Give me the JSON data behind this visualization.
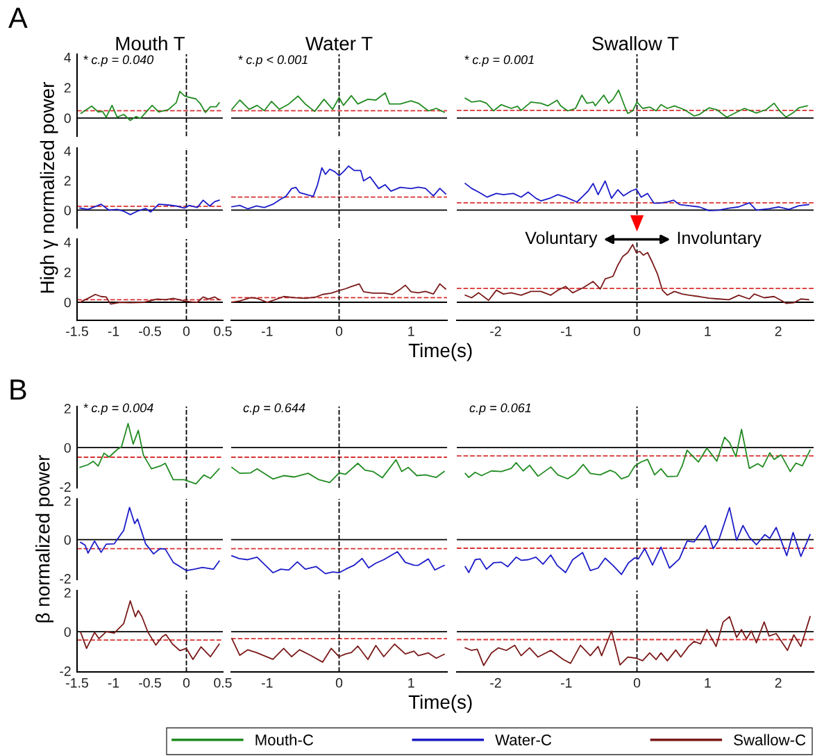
{
  "chart_data": [
    {
      "type": "line",
      "title": "Mouth T",
      "annotations": [
        "A",
        "* c.p = 0.040"
      ],
      "xlim": [
        -1.5,
        0.5
      ],
      "ylim": [
        -1.2,
        4.2
      ],
      "yticks": [
        0,
        2,
        4
      ],
      "tick_labels": "y",
      "series": [
        {
          "color": "#228b22",
          "x": [
            -1.445,
            -1.3,
            -1.21,
            -1.15,
            -1.1,
            -1.02,
            -0.95,
            -0.86,
            -0.77,
            -0.69,
            -0.63,
            -0.47,
            -0.38,
            -0.25,
            -0.14,
            -0.09,
            -0.03,
            0.0,
            0.13,
            0.19,
            0.26,
            0.33,
            0.41,
            0.45
          ],
          "values": [
            0.31,
            0.78,
            0.4,
            0.43,
            0.05,
            0.83,
            0.05,
            0.23,
            -0.16,
            0.09,
            -0.03,
            0.83,
            0.4,
            0.54,
            1.0,
            1.75,
            1.47,
            1.4,
            1.26,
            0.95,
            0.36,
            0.74,
            0.74,
            1.0
          ]
        }
      ],
      "ref_lines": [
        {
          "axis": "y",
          "value": 0,
          "color": "#000000",
          "line_style": "solid"
        },
        {
          "axis": "y",
          "value": 0.48,
          "color": "#d93030",
          "line_style": "dashed"
        },
        {
          "axis": "x",
          "value": 0,
          "color": "#000000",
          "line_style": "dashed"
        }
      ]
    },
    {
      "type": "line",
      "title": "Water T",
      "annotations": [
        "* c.p < 0.001"
      ],
      "xlim": [
        -1.5,
        1.5
      ],
      "ylim": [
        -1.2,
        4.2
      ],
      "tick_labels": false,
      "series": [
        {
          "color": "#228b22",
          "x": [
            -1.49,
            -1.38,
            -1.25,
            -1.14,
            -1.04,
            -0.94,
            -0.83,
            -0.7,
            -0.57,
            -0.47,
            -0.34,
            -0.21,
            -0.09,
            0,
            0.06,
            0.17,
            0.26,
            0.4,
            0.51,
            0.64,
            0.7,
            0.85,
            1.0,
            1.1,
            1.24,
            1.35,
            1.46
          ],
          "values": [
            0.57,
            1.18,
            0.57,
            0.83,
            0.48,
            1.09,
            0.57,
            0.92,
            1.44,
            0.92,
            0.43,
            1.23,
            0.57,
            1.35,
            0.83,
            1.47,
            0.92,
            1.23,
            1.18,
            1.65,
            0.92,
            0.92,
            1.13,
            0.97,
            0.47,
            0.63,
            0.38
          ]
        }
      ],
      "ref_lines": [
        {
          "axis": "y",
          "value": 0,
          "color": "#000000",
          "line_style": "solid"
        },
        {
          "axis": "y",
          "value": 0.48,
          "color": "#d93030",
          "line_style": "dashed"
        },
        {
          "axis": "x",
          "value": 0,
          "color": "#000000",
          "line_style": "dashed"
        }
      ]
    },
    {
      "type": "line",
      "title": "Swallow T",
      "annotations": [
        "* c.p = 0.001"
      ],
      "xlim": [
        -2.55,
        2.5
      ],
      "ylim": [
        -1.2,
        4.2
      ],
      "tick_labels": false,
      "series": [
        {
          "color": "#228b22",
          "x": [
            -2.43,
            -2.34,
            -2.22,
            -2.13,
            -2.03,
            -1.92,
            -1.78,
            -1.69,
            -1.64,
            -1.5,
            -1.36,
            -1.26,
            -1.13,
            -1.08,
            -0.98,
            -0.87,
            -0.78,
            -0.71,
            -0.62,
            -0.59,
            -0.47,
            -0.4,
            -0.34,
            -0.26,
            -0.17,
            -0.13,
            -0.06,
            0,
            0.08,
            0.18,
            0.27,
            0.34,
            0.43,
            0.53,
            0.67,
            0.81,
            0.88,
            1.02,
            1.13,
            1.27,
            1.41,
            1.52,
            1.69,
            1.83,
            1.94,
            2.02,
            2.11,
            2.22,
            2.29,
            2.41
          ],
          "values": [
            1.3,
            1.05,
            1.13,
            0.97,
            0.47,
            0.88,
            0.63,
            0.77,
            0.5,
            1.05,
            0.97,
            0.8,
            1.17,
            0.8,
            0.47,
            0.63,
            1.5,
            0.97,
            1.05,
            0.8,
            1.5,
            0.97,
            1.22,
            1.83,
            0.72,
            0.3,
            0.47,
            1.05,
            0.63,
            0.72,
            0.47,
            0.88,
            0.63,
            0.8,
            0.55,
            0.13,
            0.22,
            0.67,
            0.55,
            0.05,
            0.38,
            0.63,
            0.33,
            0.55,
            0.97,
            0.47,
            0.05,
            0.38,
            0.67,
            0.8
          ]
        }
      ],
      "ref_lines": [
        {
          "axis": "y",
          "value": 0,
          "color": "#000000",
          "line_style": "solid"
        },
        {
          "axis": "y",
          "value": 0.5,
          "color": "#d93030",
          "line_style": "dashed"
        },
        {
          "axis": "x",
          "value": 0,
          "color": "#000000",
          "line_style": "dashed"
        }
      ]
    },
    {
      "type": "line",
      "ylabel": "High γ normalized power",
      "xlim": [
        -1.5,
        0.5
      ],
      "ylim": [
        -1.2,
        4.2
      ],
      "yticks": [
        0,
        2,
        4
      ],
      "tick_labels": "y",
      "series": [
        {
          "color": "#1c1cc8",
          "x": [
            -1.46,
            -1.35,
            -1.17,
            -1.06,
            -0.95,
            -0.86,
            -0.77,
            -0.66,
            -0.56,
            -0.49,
            -0.38,
            -0.25,
            -0.14,
            -0.03,
            0.04,
            0.15,
            0.23,
            0.32,
            0.39,
            0.45
          ],
          "values": [
            0.14,
            0.05,
            0.4,
            0,
            0.05,
            -0.07,
            -0.3,
            -0.04,
            0.11,
            -0.12,
            0.4,
            0.35,
            0.28,
            0.14,
            0.32,
            0.18,
            0.67,
            0.28,
            0.58,
            0.67
          ]
        }
      ],
      "ref_lines": [
        {
          "axis": "y",
          "value": 0,
          "color": "#000000",
          "line_style": "solid"
        },
        {
          "axis": "y",
          "value": 0.26,
          "color": "#d93030",
          "line_style": "dashed"
        },
        {
          "axis": "x",
          "value": 0,
          "color": "#000000",
          "line_style": "dashed"
        }
      ]
    },
    {
      "type": "line",
      "xlim": [
        -1.5,
        1.5
      ],
      "ylim": [
        -1.2,
        4.2
      ],
      "tick_labels": false,
      "series": [
        {
          "color": "#1c1cc8",
          "x": [
            -1.49,
            -1.38,
            -1.27,
            -1.15,
            -1.04,
            -0.92,
            -0.81,
            -0.74,
            -0.66,
            -0.6,
            -0.55,
            -0.43,
            -0.36,
            -0.3,
            -0.24,
            -0.19,
            -0.13,
            -0.06,
            0,
            0.06,
            0.13,
            0.21,
            0.3,
            0.34,
            0.43,
            0.55,
            0.64,
            0.72,
            0.85,
            1.0,
            1.1,
            1.2,
            1.31,
            1.4,
            1.48
          ],
          "values": [
            0.23,
            0.32,
            0.09,
            0.28,
            0.18,
            0.4,
            0.75,
            0.93,
            1.46,
            1.54,
            1.19,
            1.02,
            0.93,
            1.72,
            2.86,
            2.42,
            2.77,
            2.6,
            2.33,
            2.6,
            2.98,
            2.68,
            2.68,
            1.98,
            2.25,
            1.46,
            1.72,
            1.28,
            1.54,
            1.46,
            1.55,
            1.47,
            0.97,
            1.47,
            1.1
          ]
        }
      ],
      "ref_lines": [
        {
          "axis": "y",
          "value": 0,
          "color": "#000000",
          "line_style": "solid"
        },
        {
          "axis": "y",
          "value": 0.88,
          "color": "#d93030",
          "line_style": "dashed"
        },
        {
          "axis": "x",
          "value": 0,
          "color": "#000000",
          "line_style": "dashed"
        }
      ]
    },
    {
      "type": "line",
      "xlim": [
        -2.55,
        2.5
      ],
      "ylim": [
        -1.2,
        4.2
      ],
      "tick_labels": false,
      "series": [
        {
          "color": "#1c1cc8",
          "x": [
            -2.43,
            -2.34,
            -2.24,
            -2.12,
            -1.99,
            -1.89,
            -1.75,
            -1.64,
            -1.54,
            -1.43,
            -1.36,
            -1.22,
            -1.12,
            -1.01,
            -0.85,
            -0.76,
            -0.69,
            -0.62,
            -0.55,
            -0.45,
            -0.36,
            -0.27,
            -0.19,
            -0.08,
            -0.01,
            0.06,
            0.15,
            0.24,
            0.32,
            0.43,
            0.52,
            0.6,
            0.74,
            0.88,
            1.02,
            1.16,
            1.3,
            1.44,
            1.59,
            1.69,
            1.87,
            2.01,
            2.15,
            2.29,
            2.43
          ],
          "values": [
            1.8,
            1.47,
            1.22,
            0.88,
            1.13,
            1.05,
            1.13,
            0.88,
            1.22,
            0.8,
            0.63,
            0.83,
            1.05,
            0.88,
            0.55,
            0.97,
            1.3,
            1.8,
            1.05,
            1.97,
            0.8,
            1.38,
            0.97,
            1.3,
            1.43,
            0.88,
            1.13,
            0.47,
            0.47,
            0.55,
            0.67,
            0.38,
            0.3,
            0.22,
            -0.03,
            0,
            0.13,
            0.22,
            0.5,
            0,
            0.1,
            0.22,
            0.05,
            0.3,
            0.38
          ]
        }
      ],
      "ref_lines": [
        {
          "axis": "y",
          "value": 0,
          "color": "#000000",
          "line_style": "solid"
        },
        {
          "axis": "y",
          "value": 0.5,
          "color": "#d93030",
          "line_style": "dashed"
        },
        {
          "axis": "x",
          "value": 0,
          "color": "#000000",
          "line_style": "dashed"
        }
      ]
    },
    {
      "type": "line",
      "xlim": [
        -1.5,
        0.5
      ],
      "xticks": [
        -1.5,
        -1,
        -0.5,
        0,
        0.5
      ],
      "ylim": [
        -1.2,
        4.2
      ],
      "yticks": [
        0,
        2,
        4
      ],
      "series": [
        {
          "color": "#7a1a1a",
          "x": [
            -1.46,
            -1.35,
            -1.25,
            -1.17,
            -1.1,
            -1.04,
            -0.91,
            -0.77,
            -0.58,
            -0.4,
            -0.29,
            -0.18,
            -0.03,
            0.07,
            0.15,
            0.23,
            0.3,
            0.39,
            0.45
          ],
          "values": [
            0,
            0.26,
            0.52,
            0.38,
            0.35,
            -0.12,
            0,
            -0.03,
            0,
            0.21,
            0.17,
            0.26,
            0.09,
            0.03,
            0,
            0.35,
            0.21,
            0.35,
            0.17
          ]
        }
      ],
      "ref_lines": [
        {
          "axis": "y",
          "value": 0,
          "color": "#000000",
          "line_style": "solid"
        },
        {
          "axis": "y",
          "value": 0.17,
          "color": "#d93030",
          "line_style": "dashed"
        },
        {
          "axis": "x",
          "value": 0,
          "color": "#000000",
          "line_style": "dashed"
        }
      ]
    },
    {
      "type": "line",
      "xlabel": "Time(s)",
      "xlim": [
        -1.5,
        1.5
      ],
      "xticks": [
        -1,
        0,
        1
      ],
      "ylim": [
        -1.2,
        4.2
      ],
      "tick_labels": "x",
      "series": [
        {
          "color": "#7a1a1a",
          "x": [
            -1.49,
            -1.38,
            -1.23,
            -1.14,
            -1.0,
            -0.89,
            -0.77,
            -0.62,
            -0.47,
            -0.32,
            -0.23,
            -0.11,
            0,
            0.09,
            0.17,
            0.28,
            0.34,
            0.47,
            0.62,
            0.74,
            0.85,
            0.92,
            1.0,
            1.1,
            1.2,
            1.31,
            1.4,
            1.48
          ],
          "values": [
            0,
            0.09,
            0.31,
            0.26,
            0,
            0.17,
            0.38,
            0.31,
            0.26,
            0.35,
            0.52,
            0.61,
            0.78,
            0.9,
            1.04,
            1.22,
            0.7,
            0.61,
            0.61,
            0.52,
            0.87,
            1.13,
            0.7,
            0.63,
            0.72,
            0.55,
            1.22,
            0.88
          ]
        }
      ],
      "ref_lines": [
        {
          "axis": "y",
          "value": 0,
          "color": "#000000",
          "line_style": "solid"
        },
        {
          "axis": "y",
          "value": 0.31,
          "color": "#d93030",
          "line_style": "dashed"
        },
        {
          "axis": "x",
          "value": 0,
          "color": "#000000",
          "line_style": "dashed"
        }
      ]
    },
    {
      "type": "line",
      "annotations": [
        "Voluntary",
        "Involuntary"
      ],
      "xlim": [
        -2.55,
        2.5
      ],
      "xticks": [
        -2,
        -1,
        0,
        1,
        2
      ],
      "ylim": [
        -1.2,
        4.2
      ],
      "tick_labels": "x",
      "series": [
        {
          "color": "#7a1a1a",
          "x": [
            -2.43,
            -2.34,
            -2.24,
            -2.1,
            -1.99,
            -1.89,
            -1.78,
            -1.64,
            -1.5,
            -1.36,
            -1.22,
            -1.12,
            -1.01,
            -0.91,
            -0.76,
            -0.62,
            -0.52,
            -0.45,
            -0.34,
            -0.27,
            -0.2,
            -0.13,
            -0.06,
            -0.01,
            0.04,
            0.09,
            0.15,
            0.22,
            0.29,
            0.36,
            0.43,
            0.53,
            0.64,
            0.74,
            0.88,
            1.02,
            1.16,
            1.3,
            1.44,
            1.59,
            1.66,
            1.8,
            1.94,
            2.04,
            2.11,
            2.22,
            2.32,
            2.43
          ],
          "values": [
            0.47,
            0.3,
            0.63,
            0.13,
            0.8,
            0.55,
            0.63,
            0.47,
            0.72,
            0.72,
            0.47,
            0.8,
            1.05,
            0.63,
            0.97,
            1.38,
            0.88,
            1.55,
            1.72,
            2.47,
            3.05,
            3.3,
            3.83,
            3.3,
            3.38,
            3.13,
            3.3,
            2.63,
            1.88,
            0.8,
            0.47,
            0.72,
            0.55,
            0.47,
            0.38,
            0.27,
            0.22,
            0.17,
            0.47,
            0.22,
            0.55,
            0.3,
            0.38,
            0.13,
            -0.07,
            -0.03,
            0.22,
            0.17
          ]
        }
      ],
      "ref_lines": [
        {
          "axis": "y",
          "value": 0,
          "color": "#000000",
          "line_style": "solid"
        },
        {
          "axis": "y",
          "value": 0.92,
          "color": "#d93030",
          "line_style": "dashed"
        },
        {
          "axis": "x",
          "value": 0,
          "color": "#000000",
          "line_style": "dashed"
        }
      ]
    },
    {
      "type": "line",
      "annotations": [
        "B",
        "* c.p = 0.004"
      ],
      "xlim": [
        -1.5,
        0.5
      ],
      "ylim": [
        -2.05,
        2.1
      ],
      "yticks": [
        -2,
        0,
        2
      ],
      "tick_labels": "y",
      "legend": "bottom",
      "series": [
        {
          "name": "Mouth-C",
          "color": "#228b22",
          "x": [
            -1.46,
            -1.35,
            -1.28,
            -1.21,
            -1.13,
            -1.06,
            -0.95,
            -0.89,
            -0.8,
            -0.73,
            -0.66,
            -0.59,
            -0.48,
            -0.36,
            -0.29,
            -0.18,
            -0.03,
            0.13,
            0.24,
            0.33,
            0.45
          ],
          "values": [
            -1.01,
            -0.87,
            -0.7,
            -0.94,
            -0.28,
            -0.48,
            -0.1,
            0.04,
            1.23,
            0.18,
            0.88,
            -0.38,
            -1.08,
            -0.94,
            -0.8,
            -1.64,
            -1.64,
            -1.85,
            -1.4,
            -1.57,
            -1.08
          ]
        }
      ],
      "ref_lines": [
        {
          "axis": "y",
          "value": 0,
          "color": "#000000",
          "line_style": "solid"
        },
        {
          "axis": "y",
          "value": -0.49,
          "color": "#d93030",
          "line_style": "dashed"
        },
        {
          "axis": "x",
          "value": 0,
          "color": "#000000",
          "line_style": "dashed"
        }
      ]
    },
    {
      "type": "line",
      "annotations": [
        "c.p = 0.644"
      ],
      "xlim": [
        -1.5,
        1.5
      ],
      "ylim": [
        -2.05,
        2.1
      ],
      "tick_labels": false,
      "series": [
        {
          "color": "#228b22",
          "x": [
            -1.49,
            -1.38,
            -1.23,
            -1.14,
            -0.92,
            -0.77,
            -0.62,
            -0.43,
            -0.28,
            -0.13,
            0,
            0.09,
            0.26,
            0.36,
            0.47,
            0.6,
            0.79,
            0.87,
            0.96,
            1.08,
            1.2,
            1.35,
            1.46
          ],
          "values": [
            -1.01,
            -1.31,
            -1.29,
            -1.08,
            -1.6,
            -1.43,
            -1.5,
            -1.31,
            -1.64,
            -1.78,
            -1.29,
            -1.36,
            -0.8,
            -1.15,
            -1.22,
            -1.54,
            -0.62,
            -1.22,
            -1.01,
            -1.43,
            -1.39,
            -1.52,
            -1.22
          ]
        }
      ],
      "ref_lines": [
        {
          "axis": "y",
          "value": 0,
          "color": "#000000",
          "line_style": "solid"
        },
        {
          "axis": "y",
          "value": -0.49,
          "color": "#d93030",
          "line_style": "dashed"
        },
        {
          "axis": "x",
          "value": 0,
          "color": "#000000",
          "line_style": "dashed"
        }
      ]
    },
    {
      "type": "line",
      "annotations": [
        "c.p = 0.061"
      ],
      "xlim": [
        -2.55,
        2.5
      ],
      "ylim": [
        -2.05,
        2.1
      ],
      "tick_labels": false,
      "series": [
        {
          "color": "#228b22",
          "x": [
            -2.43,
            -2.38,
            -2.29,
            -2.2,
            -2.06,
            -1.92,
            -1.78,
            -1.71,
            -1.61,
            -1.52,
            -1.4,
            -1.22,
            -1.12,
            -0.98,
            -0.87,
            -0.76,
            -0.66,
            -0.52,
            -0.38,
            -0.31,
            -0.22,
            -0.12,
            -0.03,
            0.06,
            0.15,
            0.25,
            0.34,
            0.43,
            0.57,
            0.64,
            0.71,
            0.76,
            0.87,
            0.99,
            1.13,
            1.24,
            1.31,
            1.4,
            1.48,
            1.59,
            1.71,
            1.78,
            1.88,
            1.94,
            2.04,
            2.17,
            2.25,
            2.34,
            2.45
          ],
          "values": [
            -1.32,
            -1.52,
            -1.26,
            -1.43,
            -1.19,
            -1.22,
            -1.06,
            -0.77,
            -1.19,
            -0.9,
            -1.46,
            -0.99,
            -1.39,
            -1.59,
            -1.32,
            -0.86,
            -1.32,
            -1.39,
            -1.16,
            -1.26,
            -1.59,
            -1.46,
            -0.93,
            -0.73,
            -0.6,
            -1.39,
            -1.08,
            -1.48,
            -1.46,
            -0.93,
            -0.13,
            -0.33,
            -0.73,
            -0.03,
            -0.69,
            0.53,
            0.26,
            -0.46,
            0.93,
            -1.06,
            -0.82,
            -0.99,
            -0.26,
            -0.6,
            -0.37,
            -1.22,
            -0.79,
            -0.93,
            -0.13
          ]
        }
      ],
      "ref_lines": [
        {
          "axis": "y",
          "value": 0,
          "color": "#000000",
          "line_style": "solid"
        },
        {
          "axis": "y",
          "value": -0.42,
          "color": "#d93030",
          "line_style": "dashed"
        },
        {
          "axis": "x",
          "value": 0,
          "color": "#000000",
          "line_style": "dashed"
        }
      ]
    },
    {
      "type": "line",
      "ylabel": "β normalized power",
      "xlim": [
        -1.5,
        0.5
      ],
      "ylim": [
        -2.05,
        2.1
      ],
      "yticks": [
        -2,
        0,
        2
      ],
      "tick_labels": "y",
      "legend": "bottom",
      "series": [
        {
          "name": "Water-C",
          "color": "#1c1cc8",
          "x": [
            -1.45,
            -1.39,
            -1.35,
            -1.26,
            -1.17,
            -1.1,
            -0.99,
            -0.86,
            -0.78,
            -0.71,
            -0.67,
            -0.56,
            -0.45,
            -0.36,
            -0.29,
            -0.18,
            0,
            0.11,
            0.22,
            0.37,
            0.45
          ],
          "values": [
            -0.14,
            -0.28,
            -0.69,
            -0.07,
            -0.65,
            -0.23,
            -0.21,
            0.48,
            1.66,
            0.83,
            1.06,
            -0.21,
            -0.73,
            -0.46,
            -0.48,
            -1.17,
            -1.59,
            -1.52,
            -1.43,
            -1.52,
            -1.1
          ]
        }
      ],
      "ref_lines": [
        {
          "axis": "y",
          "value": 0,
          "color": "#000000",
          "line_style": "solid"
        },
        {
          "axis": "y",
          "value": -0.46,
          "color": "#d93030",
          "line_style": "dashed"
        },
        {
          "axis": "x",
          "value": 0,
          "color": "#000000",
          "line_style": "dashed"
        }
      ]
    },
    {
      "type": "line",
      "xlim": [
        -1.5,
        1.5
      ],
      "ylim": [
        -2.05,
        2.1
      ],
      "tick_labels": false,
      "series": [
        {
          "color": "#1c1cc8",
          "x": [
            -1.49,
            -1.39,
            -1.27,
            -1.14,
            -0.92,
            -0.81,
            -0.7,
            -0.58,
            -0.47,
            -0.32,
            -0.19,
            -0.09,
            0,
            0.09,
            0.21,
            0.32,
            0.41,
            0.51,
            0.62,
            0.81,
            0.92,
            1.04,
            1.1,
            1.24,
            1.33,
            1.46
          ],
          "values": [
            -0.83,
            -0.97,
            -1.03,
            -0.9,
            -1.7,
            -1.52,
            -1.56,
            -1.14,
            -1.52,
            -1.38,
            -1.75,
            -1.66,
            -1.7,
            -1.52,
            -1.31,
            -0.97,
            -1.45,
            -1.21,
            -1.03,
            -0.62,
            -1.17,
            -1.31,
            -1.32,
            -0.99,
            -1.56,
            -1.32
          ]
        }
      ],
      "ref_lines": [
        {
          "axis": "y",
          "value": 0,
          "color": "#000000",
          "line_style": "solid"
        },
        {
          "axis": "y",
          "value": -0.46,
          "color": "#d93030",
          "line_style": "dashed"
        },
        {
          "axis": "x",
          "value": 0,
          "color": "#000000",
          "line_style": "dashed"
        }
      ]
    },
    {
      "type": "line",
      "xlim": [
        -2.55,
        2.5
      ],
      "ylim": [
        -2.05,
        2.1
      ],
      "tick_labels": false,
      "series": [
        {
          "color": "#1c1cc8",
          "x": [
            -2.43,
            -2.38,
            -2.29,
            -2.22,
            -2.13,
            -2.03,
            -1.92,
            -1.83,
            -1.71,
            -1.64,
            -1.54,
            -1.43,
            -1.33,
            -1.22,
            -1.13,
            -1.01,
            -0.91,
            -0.77,
            -0.66,
            -0.55,
            -0.45,
            -0.34,
            -0.22,
            -0.12,
            -0.03,
            0.02,
            0.11,
            0.22,
            0.34,
            0.46,
            0.6,
            0.71,
            0.81,
            0.97,
            1.08,
            1.16,
            1.31,
            1.41,
            1.5,
            1.59,
            1.69,
            1.81,
            1.88,
            1.97,
            2.12,
            2.21,
            2.32,
            2.45
          ],
          "values": [
            -1.39,
            -1.69,
            -1.03,
            -0.99,
            -1.52,
            -1.19,
            -1.16,
            -1.39,
            -0.9,
            -1.06,
            -1.03,
            -0.9,
            -1.26,
            -0.79,
            -1.32,
            -1.69,
            -1.03,
            -0.66,
            -1.59,
            -1.46,
            -0.95,
            -1.32,
            -1.79,
            -1.19,
            -0.93,
            -0.99,
            -0.46,
            -1.3,
            -0.38,
            -1.46,
            -0.99,
            -0.07,
            -0.11,
            0.73,
            -0.46,
            0,
            1.65,
            -0.03,
            0.73,
            0.13,
            -0.26,
            0.26,
            0.07,
            0.63,
            -0.82,
            0.37,
            -0.86,
            0.26
          ]
        }
      ],
      "ref_lines": [
        {
          "axis": "y",
          "value": 0,
          "color": "#000000",
          "line_style": "solid"
        },
        {
          "axis": "y",
          "value": -0.44,
          "color": "#d93030",
          "line_style": "dashed"
        },
        {
          "axis": "x",
          "value": 0,
          "color": "#000000",
          "line_style": "dashed"
        }
      ]
    },
    {
      "type": "line",
      "xlim": [
        -1.5,
        0.5
      ],
      "xticks": [
        -1.5,
        -1,
        -0.5,
        0,
        0.5
      ],
      "ylim": [
        -2.05,
        2.1
      ],
      "yticks": [
        -2,
        0,
        2
      ],
      "legend": "bottom",
      "series": [
        {
          "name": "Swallow-C",
          "color": "#7a1a1a",
          "x": [
            -1.45,
            -1.37,
            -1.26,
            -1.2,
            -1.1,
            -0.99,
            -0.86,
            -0.77,
            -0.7,
            -0.66,
            -0.61,
            -0.53,
            -0.42,
            -0.33,
            -0.28,
            -0.19,
            -0.09,
            0,
            0.09,
            0.2,
            0.33,
            0.45
          ],
          "values": [
            -0.03,
            -0.85,
            -0.03,
            -0.35,
            0,
            -0.07,
            0.42,
            1.58,
            0.77,
            1.08,
            0.77,
            0,
            -0.68,
            -0.25,
            -0.14,
            -0.63,
            -0.96,
            -0.85,
            -1.41,
            -0.77,
            -1.27,
            -0.63
          ]
        }
      ],
      "ref_lines": [
        {
          "axis": "y",
          "value": 0,
          "color": "#000000",
          "line_style": "solid"
        },
        {
          "axis": "y",
          "value": -0.42,
          "color": "#d93030",
          "line_style": "dashed"
        },
        {
          "axis": "x",
          "value": 0,
          "color": "#000000",
          "line_style": "dashed"
        }
      ]
    },
    {
      "type": "line",
      "xlabel": "Time(s)",
      "xlim": [
        -1.5,
        1.5
      ],
      "xticks": [
        -1,
        0,
        1
      ],
      "ylim": [
        -2.05,
        2.1
      ],
      "tick_labels": "x",
      "series": [
        {
          "color": "#7a1a1a",
          "x": [
            -1.49,
            -1.38,
            -1.27,
            -1.15,
            -0.92,
            -0.77,
            -0.66,
            -0.55,
            -0.4,
            -0.23,
            -0.11,
            0,
            0.09,
            0.17,
            0.26,
            0.4,
            0.51,
            0.62,
            0.77,
            0.92,
            1.04,
            1.1,
            1.24,
            1.35,
            1.46
          ],
          "values": [
            -0.35,
            -1.2,
            -0.92,
            -1.06,
            -1.41,
            -0.85,
            -1.27,
            -0.92,
            -1.2,
            -1.55,
            -0.85,
            -1.27,
            -1.13,
            -1.06,
            -0.73,
            -1.41,
            -0.7,
            -1.27,
            -0.63,
            -1.13,
            -0.99,
            -1.22,
            -1.08,
            -1.35,
            -1.15
          ]
        }
      ],
      "ref_lines": [
        {
          "axis": "y",
          "value": 0,
          "color": "#000000",
          "line_style": "solid"
        },
        {
          "axis": "y",
          "value": -0.35,
          "color": "#d93030",
          "line_style": "dashed"
        },
        {
          "axis": "x",
          "value": 0,
          "color": "#000000",
          "line_style": "dashed"
        }
      ]
    },
    {
      "type": "line",
      "xlim": [
        -2.55,
        2.5
      ],
      "xticks": [
        -2,
        -1,
        0,
        1,
        2
      ],
      "ylim": [
        -2.05,
        2.1
      ],
      "tick_labels": "x",
      "series": [
        {
          "color": "#7a1a1a",
          "x": [
            -2.43,
            -2.34,
            -2.26,
            -2.17,
            -2.06,
            -1.96,
            -1.85,
            -1.73,
            -1.64,
            -1.52,
            -1.4,
            -1.22,
            -1.04,
            -0.94,
            -0.8,
            -0.66,
            -0.55,
            -0.5,
            -0.36,
            -0.24,
            -0.13,
            -0.01,
            0.08,
            0.18,
            0.27,
            0.34,
            0.43,
            0.55,
            0.62,
            0.73,
            0.81,
            0.9,
            0.99,
            1.12,
            1.22,
            1.31,
            1.41,
            1.48,
            1.55,
            1.62,
            1.69,
            1.8,
            1.87,
            1.97,
            2.13,
            2.22,
            2.32,
            2.45
          ],
          "values": [
            -0.82,
            -0.95,
            -0.89,
            -1.72,
            -1.08,
            -0.82,
            -0.95,
            -0.69,
            -1.22,
            -0.82,
            -1.29,
            -0.95,
            -1.42,
            -1.61,
            -0.69,
            -1.22,
            -0.75,
            -1.22,
            0.04,
            -1.69,
            -1.29,
            -1.35,
            -1.48,
            -1.08,
            -1.42,
            -1.08,
            -1.48,
            -0.93,
            -1.29,
            -0.75,
            -0.49,
            -0.62,
            0.11,
            -0.75,
            0.5,
            0.77,
            -0.29,
            0.11,
            -0.36,
            0.04,
            -0.56,
            0.5,
            -0.22,
            -0.09,
            -0.95,
            -0.16,
            -0.75,
            0.77
          ]
        }
      ],
      "ref_lines": [
        {
          "axis": "y",
          "value": 0,
          "color": "#000000",
          "line_style": "solid"
        },
        {
          "axis": "y",
          "value": -0.4,
          "color": "#d93030",
          "line_style": "dashed"
        },
        {
          "axis": "x",
          "value": 0,
          "color": "#000000",
          "line_style": "dashed"
        }
      ]
    }
  ]
}
